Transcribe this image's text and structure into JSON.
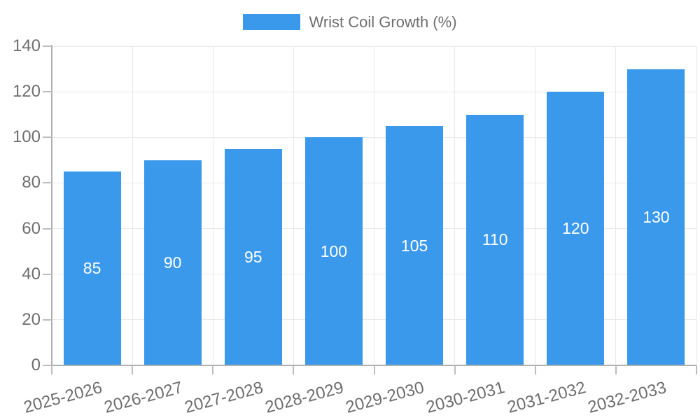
{
  "legend": {
    "label": "Wrist Coil Growth (%)"
  },
  "chart_data": {
    "type": "bar",
    "title": "",
    "series_name": "Wrist Coil Growth (%)",
    "categories": [
      "2025-2026",
      "2026-2027",
      "2027-2028",
      "2028-2029",
      "2029-2030",
      "2030-2031",
      "2031-2032",
      "2032-2033"
    ],
    "values": [
      85,
      90,
      95,
      100,
      105,
      110,
      120,
      130
    ],
    "bar_value_labels": [
      "85",
      "90",
      "95",
      "100",
      "105",
      "110",
      "120",
      "130"
    ],
    "xlabel": "",
    "ylabel": "",
    "ylim": [
      0,
      140
    ],
    "yticks": [
      0,
      20,
      40,
      60,
      80,
      100,
      120,
      140
    ],
    "grid": true,
    "legend_position": "top-center",
    "x_label_rotation_deg": -15
  },
  "colors": {
    "bar": "#3B99EC",
    "bar_label": "#FFFFFF",
    "axis_text": "#6E6E6E",
    "legend_text": "#6E6E6E",
    "gridline": "#E8E8E8",
    "axis_line": "#B0B0B0",
    "baseline": "#B0B0B0",
    "tick": "#BDBDBD",
    "background": "#FFFFFF"
  }
}
